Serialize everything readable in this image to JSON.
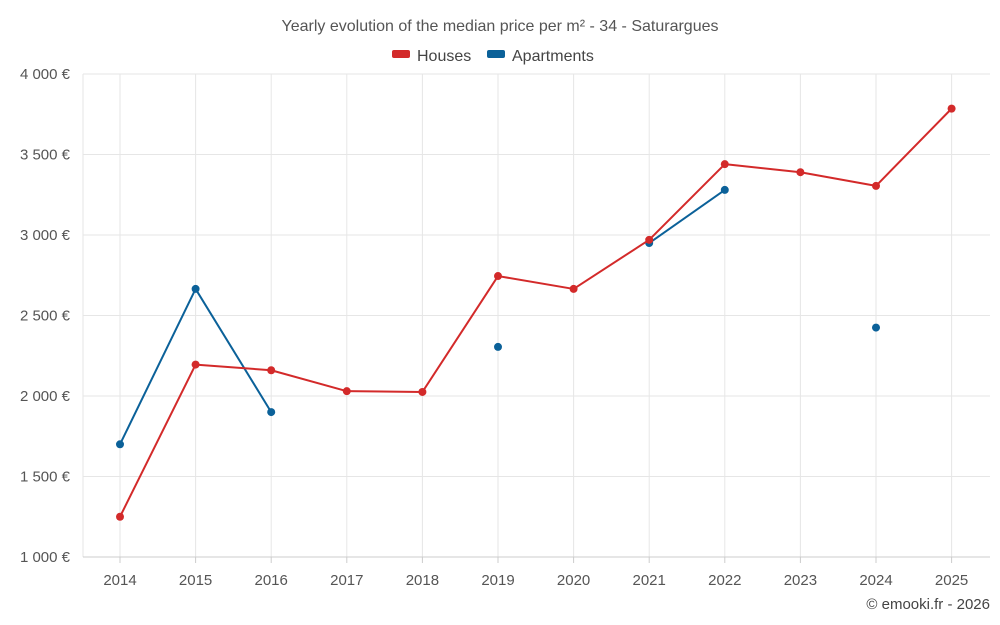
{
  "chart_data": {
    "type": "line",
    "title": "Yearly evolution of the median price per m² - 34 - Saturargues",
    "categories": [
      "2014",
      "2015",
      "2016",
      "2017",
      "2018",
      "2019",
      "2020",
      "2021",
      "2022",
      "2023",
      "2024",
      "2025"
    ],
    "ylim": [
      1000,
      4000
    ],
    "yticks": [
      1000,
      1500,
      2000,
      2500,
      3000,
      3500,
      4000
    ],
    "ytick_labels": [
      "1 000 €",
      "1 500 €",
      "2 000 €",
      "2 500 €",
      "3 000 €",
      "3 500 €",
      "4 000 €"
    ],
    "grid": true,
    "legend_position": "top-center",
    "series": [
      {
        "name": "Houses",
        "color": "#d32a2a",
        "values": [
          1250,
          2195,
          2160,
          2030,
          2025,
          2745,
          2665,
          2970,
          3440,
          3390,
          3305,
          3785
        ]
      },
      {
        "name": "Apartments",
        "color": "#0b6199",
        "values": [
          1700,
          2665,
          1900,
          null,
          null,
          2305,
          null,
          2950,
          3280,
          null,
          2425,
          null
        ]
      }
    ],
    "credit": "© emooki.fr - 2026"
  }
}
